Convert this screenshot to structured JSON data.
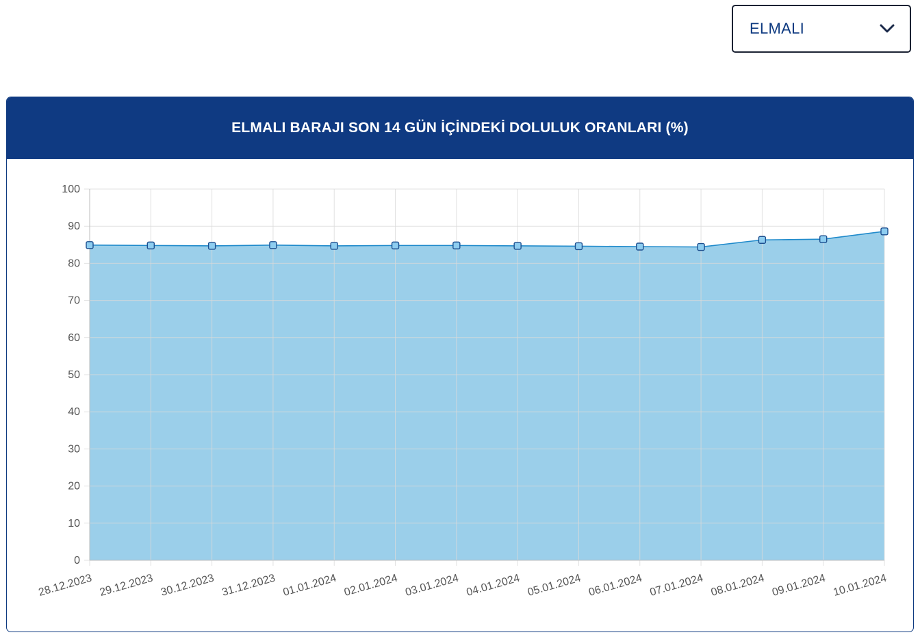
{
  "selector": {
    "selected": "ELMALI",
    "icon": "chevron-down-icon"
  },
  "card": {
    "title": "ELMALI BARAJI SON 14 GÜN İÇİNDEKİ DOLULUK ORANLARI (%)"
  },
  "colors": {
    "header_bg": "#0f3a82",
    "area_fill": "#9bcfea",
    "line": "#1f8acb",
    "marker_fill": "#8ecdf0",
    "marker_stroke": "#1d4f8f",
    "grid": "#d9d9d9",
    "tick_text": "#555555"
  },
  "chart_data": {
    "type": "area",
    "categories": [
      "28.12.2023",
      "29.12.2023",
      "30.12.2023",
      "31.12.2023",
      "01.01.2024",
      "02.01.2024",
      "03.01.2024",
      "04.01.2024",
      "05.01.2024",
      "06.01.2024",
      "07.01.2024",
      "08.01.2024",
      "09.01.2024",
      "10.01.2024"
    ],
    "values": [
      84.9,
      84.8,
      84.7,
      84.9,
      84.7,
      84.8,
      84.8,
      84.7,
      84.6,
      84.5,
      84.4,
      86.3,
      86.5,
      88.6
    ],
    "ylim": [
      0,
      100
    ],
    "yticks": [
      0,
      10,
      20,
      30,
      40,
      50,
      60,
      70,
      80,
      90,
      100
    ],
    "grid": true,
    "legend": "none"
  }
}
